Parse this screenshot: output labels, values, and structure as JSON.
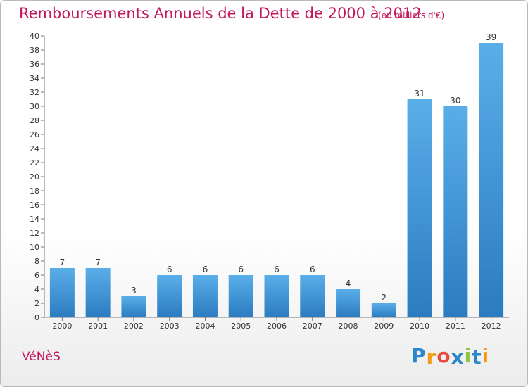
{
  "title": "Remboursements Annuels de la Dette de 2000 à 2012",
  "subtitle": "(en milliers d'€)",
  "commune": "VéNèS",
  "logo": {
    "text": "Proxiti",
    "letter_colors": [
      "#2a86c8",
      "#f39c12",
      "#e74c3c",
      "#2a86c8",
      "#8cc63f",
      "#2a86c8",
      "#f39c12"
    ]
  },
  "colors": {
    "title": "#c2185b",
    "bar_light": "#5aaee8",
    "bar_dark": "#2b7cc0"
  },
  "chart_data": {
    "type": "bar",
    "title": "Remboursements Annuels de la Dette de 2000 à 2012",
    "subtitle": "(en milliers d'€)",
    "categories": [
      "2000",
      "2001",
      "2002",
      "2003",
      "2004",
      "2005",
      "2006",
      "2007",
      "2008",
      "2009",
      "2010",
      "2011",
      "2012"
    ],
    "values": [
      7,
      7,
      3,
      6,
      6,
      6,
      6,
      6,
      4,
      2,
      31,
      30,
      39
    ],
    "ylim": [
      0,
      40
    ],
    "yticks": [
      0,
      2,
      4,
      6,
      8,
      10,
      12,
      14,
      16,
      18,
      20,
      22,
      24,
      26,
      28,
      30,
      32,
      34,
      36,
      38,
      40
    ],
    "xlabel": "",
    "ylabel": "",
    "grid": false,
    "legend": "none"
  }
}
